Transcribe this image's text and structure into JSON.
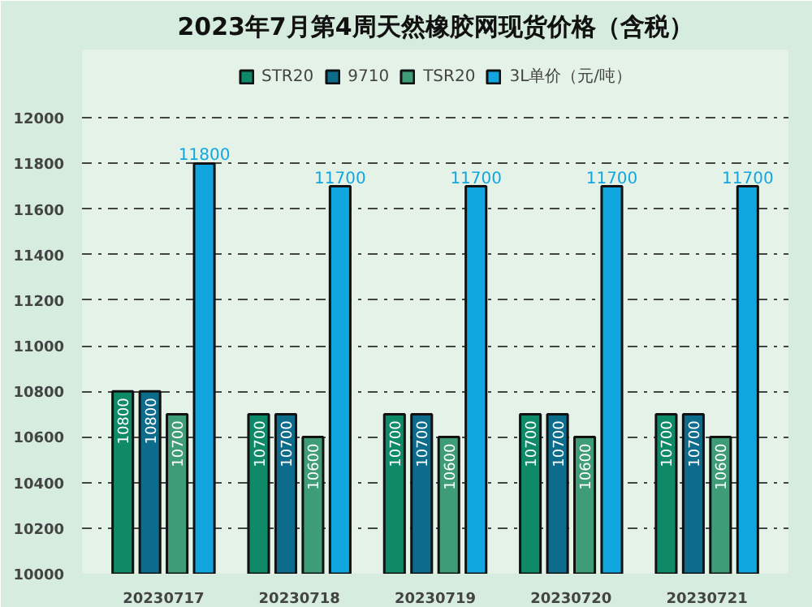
{
  "chart_data": {
    "type": "bar",
    "title": "2023年7月第4周天然橡胶网现货价格（含税）",
    "categories": [
      "20230717",
      "20230718",
      "20230719",
      "20230720",
      "20230721"
    ],
    "series": [
      {
        "name": "STR20",
        "color": "#0e8a68",
        "values": [
          10800,
          10700,
          10700,
          10700,
          10700
        ]
      },
      {
        "name": "9710",
        "color": "#0d6c8c",
        "values": [
          10800,
          10700,
          10700,
          10700,
          10700
        ]
      },
      {
        "name": "TSR20",
        "color": "#3e9c78",
        "values": [
          10700,
          10600,
          10600,
          10600,
          10600
        ]
      },
      {
        "name": "3L单价（元/吨）",
        "color": "#12a6e0",
        "values": [
          11800,
          11700,
          11700,
          11700,
          11700
        ]
      }
    ],
    "ylim": [
      10000,
      12300
    ],
    "yticks": [
      10000,
      10200,
      10400,
      10600,
      10800,
      11000,
      11200,
      11400,
      11600,
      11800,
      12000
    ],
    "grid": "y",
    "legend": "top",
    "data_labels": true
  }
}
